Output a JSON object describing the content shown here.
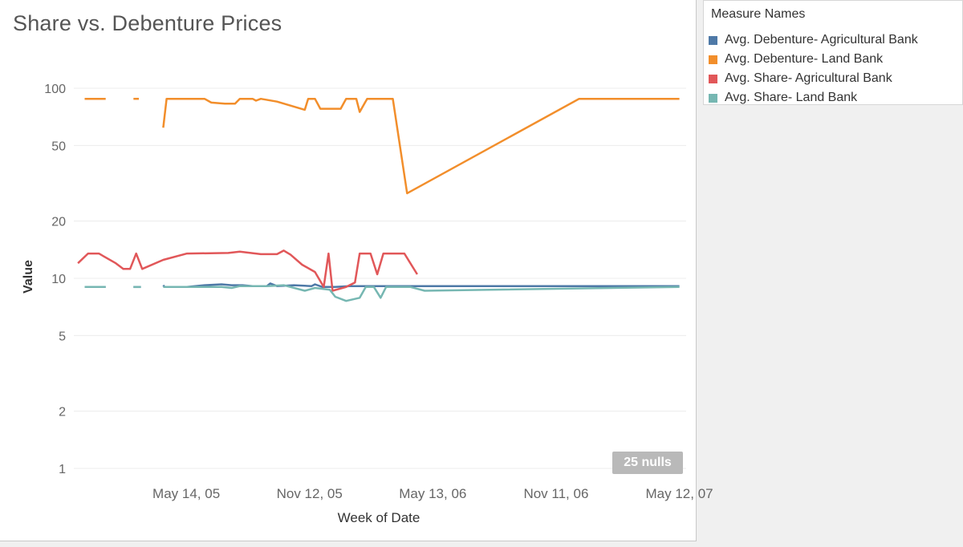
{
  "chart_data": {
    "type": "line",
    "title": "Share vs. Debenture Prices",
    "xlabel": "Week of Date",
    "ylabel": "Value",
    "y_scale": "log",
    "ylim": [
      1,
      100
    ],
    "y_ticks": [
      1,
      2,
      5,
      10,
      20,
      50,
      100
    ],
    "y_tick_labels": [
      "1",
      "2",
      "5",
      "10",
      "20",
      "50",
      "100"
    ],
    "x_tick_labels": [
      "May 14, 05",
      "Nov 12, 05",
      "May 13, 06",
      "Nov 11, 06",
      "May 12, 07"
    ],
    "x_tick_dates": [
      "2005-05-14",
      "2005-11-12",
      "2006-05-13",
      "2006-11-11",
      "2007-05-12"
    ],
    "xlim": [
      "2004-11-29",
      "2007-05-22"
    ],
    "grid": true,
    "null_count_label": "25 nulls",
    "legend": {
      "title": "Measure Names",
      "placement": "right"
    },
    "series": [
      {
        "name": "Avg. Debenture- Agricultural Bank",
        "color": "#4e79a7",
        "segments": [
          [
            [
              "2004-12-15",
              9.0
            ],
            [
              "2005-01-15",
              9.0
            ]
          ],
          [
            [
              "2005-02-25",
              9.0
            ],
            [
              "2005-03-08",
              9.0
            ]
          ],
          [
            [
              "2005-04-10",
              9.2
            ],
            [
              "2005-04-12",
              9.0
            ],
            [
              "2005-05-15",
              9.0
            ],
            [
              "2005-06-10",
              9.2
            ],
            [
              "2005-07-05",
              9.3
            ],
            [
              "2005-07-20",
              9.2
            ],
            [
              "2005-08-05",
              9.2
            ],
            [
              "2005-08-20",
              9.1
            ],
            [
              "2005-09-10",
              9.1
            ],
            [
              "2005-09-15",
              9.4
            ],
            [
              "2005-09-25",
              9.1
            ],
            [
              "2005-10-20",
              9.2
            ],
            [
              "2005-11-15",
              9.1
            ],
            [
              "2005-11-20",
              9.3
            ],
            [
              "2005-12-01",
              9.0
            ],
            [
              "2005-12-20",
              9.0
            ],
            [
              "2006-01-10",
              9.1
            ],
            [
              "2006-02-01",
              9.1
            ],
            [
              "2006-03-15",
              9.1
            ],
            [
              "2006-05-15",
              9.1
            ],
            [
              "2006-11-15",
              9.1
            ],
            [
              "2007-05-12",
              9.1
            ]
          ]
        ]
      },
      {
        "name": "Avg. Debenture- Land Bank",
        "color": "#f28e2b",
        "segments": [
          [
            [
              "2004-12-15",
              88
            ],
            [
              "2005-01-15",
              88
            ]
          ],
          [
            [
              "2005-02-25",
              88
            ],
            [
              "2005-03-05",
              88
            ]
          ],
          [
            [
              "2005-04-10",
              62
            ],
            [
              "2005-04-15",
              88
            ],
            [
              "2005-06-10",
              88
            ],
            [
              "2005-06-20",
              84
            ],
            [
              "2005-07-10",
              83
            ],
            [
              "2005-07-25",
              83
            ],
            [
              "2005-08-01",
              88
            ],
            [
              "2005-08-20",
              88
            ],
            [
              "2005-08-25",
              86
            ],
            [
              "2005-09-01",
              88
            ],
            [
              "2005-09-25",
              85
            ],
            [
              "2005-11-05",
              77
            ],
            [
              "2005-11-10",
              88
            ],
            [
              "2005-11-20",
              88
            ],
            [
              "2005-11-28",
              78
            ],
            [
              "2005-12-28",
              78
            ],
            [
              "2006-01-05",
              88
            ],
            [
              "2006-01-20",
              88
            ],
            [
              "2006-01-25",
              75
            ],
            [
              "2006-02-05",
              88
            ],
            [
              "2006-03-15",
              88
            ],
            [
              "2006-04-05",
              28
            ],
            [
              "2006-12-15",
              88
            ],
            [
              "2007-05-12",
              88
            ]
          ]
        ]
      },
      {
        "name": "Avg. Share- Agricultural Bank",
        "color": "#e15759",
        "segments": [
          [
            [
              "2004-12-05",
              12.0
            ],
            [
              "2004-12-20",
              13.5
            ],
            [
              "2005-01-05",
              13.5
            ],
            [
              "2005-01-30",
              12.0
            ],
            [
              "2005-02-10",
              11.2
            ],
            [
              "2005-02-20",
              11.2
            ],
            [
              "2005-03-01",
              13.5
            ],
            [
              "2005-03-10",
              11.2
            ],
            [
              "2005-04-10",
              12.5
            ],
            [
              "2005-05-15",
              13.5
            ],
            [
              "2005-07-15",
              13.6
            ],
            [
              "2005-08-01",
              13.8
            ],
            [
              "2005-09-01",
              13.4
            ],
            [
              "2005-09-25",
              13.4
            ],
            [
              "2005-10-05",
              14.0
            ],
            [
              "2005-10-15",
              13.3
            ],
            [
              "2005-11-01",
              11.8
            ],
            [
              "2005-11-20",
              10.8
            ],
            [
              "2005-12-03",
              9.0
            ],
            [
              "2005-12-10",
              13.5
            ],
            [
              "2005-12-16",
              8.6
            ],
            [
              "2006-01-05",
              9.0
            ],
            [
              "2006-01-18",
              9.5
            ],
            [
              "2006-01-25",
              13.5
            ],
            [
              "2006-02-10",
              13.5
            ],
            [
              "2006-02-20",
              10.5
            ],
            [
              "2006-03-01",
              13.5
            ],
            [
              "2006-04-01",
              13.5
            ],
            [
              "2006-04-20",
              10.5
            ]
          ]
        ]
      },
      {
        "name": "Avg. Share- Land Bank",
        "color": "#76b7b2",
        "segments": [
          [
            [
              "2004-12-15",
              9.0
            ],
            [
              "2005-01-15",
              9.0
            ]
          ],
          [
            [
              "2005-02-25",
              9.0
            ],
            [
              "2005-03-08",
              9.0
            ]
          ],
          [
            [
              "2005-04-10",
              9.0
            ],
            [
              "2005-07-05",
              9.0
            ],
            [
              "2005-07-20",
              8.9
            ],
            [
              "2005-08-01",
              9.1
            ],
            [
              "2005-09-10",
              9.1
            ],
            [
              "2005-10-05",
              9.2
            ],
            [
              "2005-11-05",
              8.6
            ],
            [
              "2005-11-20",
              8.9
            ],
            [
              "2005-12-12",
              8.7
            ],
            [
              "2005-12-20",
              8.0
            ],
            [
              "2006-01-05",
              7.6
            ],
            [
              "2006-01-25",
              7.9
            ],
            [
              "2006-02-03",
              9.0
            ],
            [
              "2006-02-15",
              9.0
            ],
            [
              "2006-02-25",
              7.9
            ],
            [
              "2006-03-05",
              9.0
            ],
            [
              "2006-04-10",
              9.0
            ],
            [
              "2006-05-01",
              8.6
            ],
            [
              "2007-05-12",
              9.0
            ]
          ]
        ]
      }
    ]
  }
}
